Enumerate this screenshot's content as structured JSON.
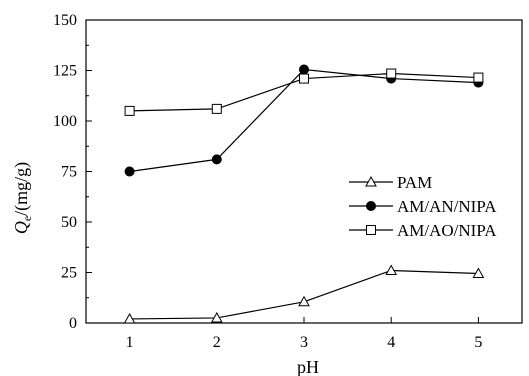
{
  "chart_data": {
    "type": "line",
    "title": "",
    "xlabel": "pH",
    "ylabel": {
      "symbol": "Q",
      "subscript": "e",
      "unit": "/(mg/g)"
    },
    "x": [
      1,
      2,
      3,
      4,
      5
    ],
    "xticks": [
      "1",
      "2",
      "3",
      "4",
      "5"
    ],
    "xlim": [
      0.5,
      5.5
    ],
    "ylim": [
      0,
      150
    ],
    "yticks": [
      "0",
      "25",
      "50",
      "75",
      "100",
      "125",
      "150"
    ],
    "grid": false,
    "legend_position": "right",
    "series": [
      {
        "name": "PAM",
        "marker": "triangle-open",
        "color": "#000000",
        "values": [
          2,
          2.5,
          10.5,
          26,
          24.5
        ]
      },
      {
        "name": "AM/AN/NIPA",
        "marker": "circle-filled",
        "color": "#000000",
        "values": [
          75,
          81,
          125.5,
          121,
          119
        ]
      },
      {
        "name": "AM/AO/NIPA",
        "marker": "square-open",
        "color": "#000000",
        "values": [
          105,
          106,
          121,
          123.5,
          121.5
        ]
      }
    ]
  }
}
